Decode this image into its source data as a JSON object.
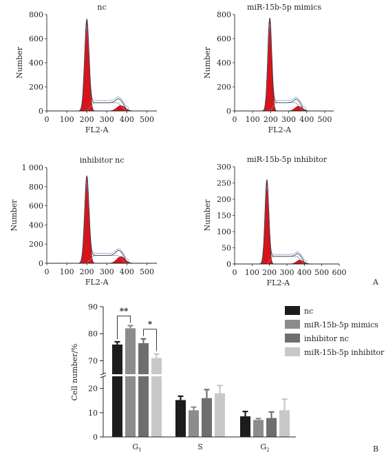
{
  "figure": {
    "panel_a_label": "A",
    "panel_b_label": "B"
  },
  "chart_data": [
    {
      "type": "area",
      "title": "nc",
      "xlabel": "FL2-A",
      "ylabel": "Number",
      "xlim": [
        0,
        550
      ],
      "ylim": [
        0,
        800
      ],
      "xticks": [
        0,
        100,
        200,
        300,
        400,
        500
      ],
      "xtick_labels": [
        "0",
        "100",
        "200",
        "300",
        "400",
        "500"
      ],
      "yticks": [
        0,
        200,
        400,
        600,
        800
      ],
      "ytick_labels": [
        "0",
        "200",
        "400",
        "600",
        "800"
      ],
      "g1_peak": {
        "x": 200,
        "height": 760
      },
      "g2_peak": {
        "x": 370,
        "height": 45
      }
    },
    {
      "type": "area",
      "title": "miR-15b-5p mimics",
      "xlabel": "FL2-A",
      "ylabel": "Number",
      "xlim": [
        0,
        550
      ],
      "ylim": [
        0,
        800
      ],
      "xticks": [
        0,
        100,
        200,
        300,
        400,
        500
      ],
      "xtick_labels": [
        "0",
        "100",
        "200",
        "300",
        "400",
        "500"
      ],
      "yticks": [
        0,
        200,
        400,
        600,
        800
      ],
      "ytick_labels": [
        "0",
        "200",
        "400",
        "600",
        "800"
      ],
      "g1_peak": {
        "x": 195,
        "height": 770
      },
      "g2_peak": {
        "x": 355,
        "height": 40
      }
    },
    {
      "type": "area",
      "title": "inhibitor nc",
      "xlabel": "FL2-A",
      "ylabel": "Number",
      "xlim": [
        0,
        550
      ],
      "ylim": [
        0,
        1000
      ],
      "xticks": [
        0,
        100,
        200,
        300,
        400,
        500
      ],
      "xtick_labels": [
        "0",
        "100",
        "200",
        "300",
        "400",
        "500"
      ],
      "yticks": [
        0,
        200,
        400,
        600,
        800,
        1000
      ],
      "ytick_labels": [
        "0",
        "200",
        "400",
        "600",
        "800",
        "1 000"
      ],
      "g1_peak": {
        "x": 200,
        "height": 910
      },
      "g2_peak": {
        "x": 370,
        "height": 70
      }
    },
    {
      "type": "area",
      "title": "miR-15b-5p inhibitor",
      "xlabel": "FL2-A",
      "ylabel": "Number",
      "xlim": [
        0,
        600
      ],
      "ylim": [
        0,
        300
      ],
      "xticks": [
        0,
        100,
        200,
        300,
        400,
        500,
        600
      ],
      "xtick_labels": [
        "0",
        "100",
        "200",
        "300",
        "400",
        "500",
        "600"
      ],
      "yticks": [
        0,
        50,
        100,
        150,
        200,
        250,
        300
      ],
      "ytick_labels": [
        "0",
        "50",
        "100",
        "150",
        "200",
        "250",
        "300"
      ],
      "g1_peak": {
        "x": 185,
        "height": 260
      },
      "g2_peak": {
        "x": 375,
        "height": 12
      }
    },
    {
      "type": "bar",
      "categories": [
        "G1",
        "S",
        "G2"
      ],
      "category_labels": [
        {
          "base": "G",
          "sub": "1"
        },
        {
          "base": "S",
          "sub": ""
        },
        {
          "base": "G",
          "sub": "2"
        }
      ],
      "ylabel": "Cell number/%",
      "ylim": [
        0,
        90
      ],
      "y_break": [
        25,
        65
      ],
      "yticks": [
        0,
        10,
        20,
        70,
        80,
        90
      ],
      "ytick_labels": [
        "0",
        "10",
        "20",
        "70",
        "80",
        "90"
      ],
      "series": [
        {
          "name": "nc",
          "color": "#1c1c1c",
          "values": [
            76,
            15.2,
            8.5
          ],
          "errors": [
            1.0,
            1.6,
            2.0
          ]
        },
        {
          "name": "miR-15b-5p mimics",
          "color": "#8c8c8c",
          "values": [
            82,
            11,
            7
          ],
          "errors": [
            1.0,
            1.3,
            0.6
          ]
        },
        {
          "name": "inhibitor nc",
          "color": "#6e6e6e",
          "values": [
            76.5,
            16,
            7.8
          ],
          "errors": [
            1.6,
            3.5,
            2.5
          ]
        },
        {
          "name": "miR-15b-5p inhibitor",
          "color": "#c8c8c8",
          "values": [
            71,
            18,
            11
          ],
          "errors": [
            1.5,
            3.2,
            4.6
          ]
        }
      ],
      "significance": [
        {
          "between": [
            0,
            1
          ],
          "label": "**"
        },
        {
          "between": [
            2,
            3
          ],
          "label": "*"
        }
      ],
      "legend_position": "right"
    }
  ]
}
